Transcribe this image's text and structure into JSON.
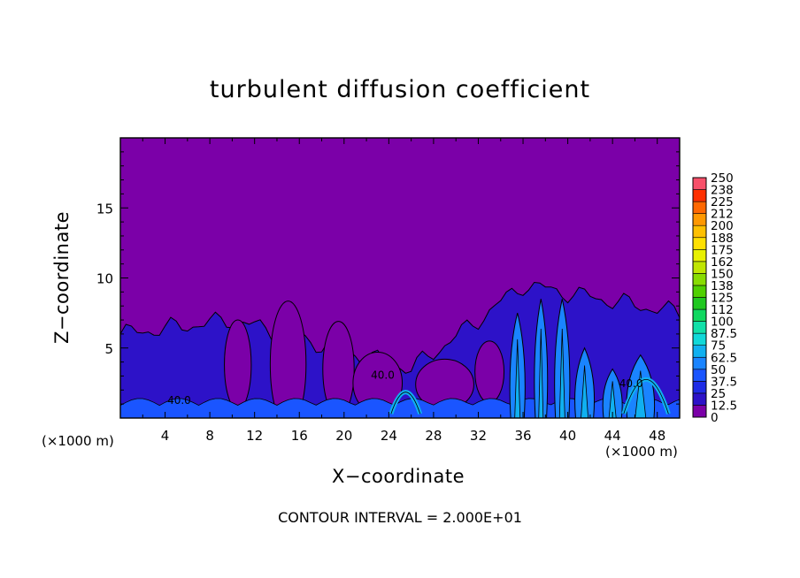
{
  "chart_data": {
    "type": "heatmap",
    "title": "turbulent diffusion coefficient",
    "xlabel": "X−coordinate",
    "ylabel": "Z−coordinate",
    "x_unit": "(×1000 m)",
    "xlim": [
      0,
      50
    ],
    "ylim": [
      0,
      20
    ],
    "x_ticks": [
      4,
      8,
      12,
      16,
      20,
      24,
      28,
      32,
      36,
      40,
      44,
      48
    ],
    "y_ticks": [
      5,
      10,
      15
    ],
    "contour_interval_text": "CONTOUR INTERVAL = 2.000E+01",
    "contour_label": "40.0",
    "colorbar": {
      "levels": [
        "0",
        "12.5",
        "25",
        "37.5",
        "50",
        "62.5",
        "75",
        "87.5",
        "100",
        "112",
        "125",
        "138",
        "150",
        "162",
        "175",
        "188",
        "200",
        "212",
        "225",
        "238",
        "250"
      ],
      "colors": [
        "#7b00a8",
        "#2d12c8",
        "#1e2be6",
        "#1a55ff",
        "#1a84ff",
        "#10b0f0",
        "#10d8d8",
        "#10e0a8",
        "#10d860",
        "#20c820",
        "#50d000",
        "#88dc00",
        "#c0e600",
        "#e8f000",
        "#ffe000",
        "#ffc000",
        "#ff9800",
        "#ff6800",
        "#ff3000",
        "#f8506a"
      ]
    },
    "background_value": 0,
    "boundary_layer_top_km": [
      6,
      7,
      3.5,
      7,
      9.5,
      7.5
    ],
    "boundary_layer_x_km": [
      0,
      10,
      26,
      32,
      36,
      50
    ]
  }
}
